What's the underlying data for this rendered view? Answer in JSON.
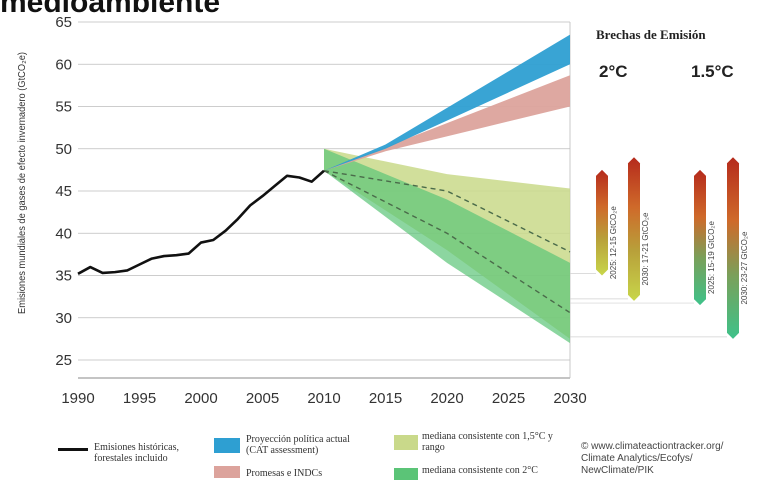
{
  "header": {
    "title_fragment": "medioambiente"
  },
  "gaps": {
    "title": "Brechas de Emisión",
    "h2c": "2°C",
    "h15c": "1.5°C",
    "bars": [
      {
        "label": "2025: 12-15 GtCO₂e",
        "from": 35,
        "to": 47.5
      },
      {
        "label": "2030: 17-21 GtCO₂e",
        "from": 32,
        "to": 49
      },
      {
        "label": "2025: 15-19 GtCO₂e",
        "from": 31.5,
        "to": 47.5
      },
      {
        "label": "2030: 23-27 GtCO₂e",
        "from": 27.5,
        "to": 49
      }
    ]
  },
  "legend": {
    "historical": "Emisiones históricas, forestales incluido",
    "current_policy": "Proyección política actual (CAT assessment)",
    "pledges": "Promesas e INDCs",
    "median_15": "mediana consistente con 1,5°C y rango",
    "median_2": "mediana consistente con 2°C"
  },
  "credit": [
    "© www.climateactiontracker.org/",
    "Climate Analytics/Ecofys/",
    "NewClimate/PIK"
  ],
  "colors": {
    "historical": "#111111",
    "current_policy": "#2e9fd2",
    "pledges": "#dca39c",
    "band_15": "#c9d98a",
    "band_2": "#5bc477",
    "band_overlap": "#8fcf7a",
    "median": "#4a6b4a",
    "bar_top": "#b52a1c",
    "bar_mid": "#d17a2a",
    "bar_yellow": "#c8d64a",
    "bar_green": "#3ec28a"
  },
  "chart_data": {
    "type": "line",
    "ylabel": "Emisiones mundiales de gases de efecto invernadero (GtCO₂e)",
    "xlabel": "",
    "xlim": [
      1990,
      2030
    ],
    "ylim": [
      25,
      65
    ],
    "x_ticks": [
      1990,
      1995,
      2000,
      2005,
      2010,
      2015,
      2020,
      2025,
      2030
    ],
    "y_ticks": [
      25,
      30,
      35,
      40,
      45,
      50,
      55,
      60,
      65
    ],
    "grid": "horizontal",
    "historical": {
      "name": "Emisiones históricas, forestales incluido",
      "x": [
        1990,
        1991,
        1992,
        1993,
        1994,
        1995,
        1996,
        1997,
        1998,
        1999,
        2000,
        2001,
        2002,
        2003,
        2004,
        2005,
        2006,
        2007,
        2008,
        2009,
        2010
      ],
      "y": [
        35.2,
        36.0,
        35.3,
        35.4,
        35.6,
        36.3,
        37.0,
        37.3,
        37.4,
        37.6,
        38.9,
        39.2,
        40.3,
        41.7,
        43.3,
        44.4,
        45.6,
        46.8,
        46.6,
        46.1,
        47.4
      ]
    },
    "current_policy": {
      "name": "Proyección política actual (CAT assessment)",
      "x": [
        2010,
        2015,
        2030
      ],
      "upper": [
        47.4,
        50.5,
        63.5
      ],
      "lower": [
        47.4,
        50.0,
        60.0
      ]
    },
    "pledges": {
      "name": "Promesas e INDCs",
      "x": [
        2010,
        2015,
        2030
      ],
      "upper": [
        47.4,
        50.2,
        58.7
      ],
      "lower": [
        47.4,
        49.7,
        55.0
      ]
    },
    "band_15": {
      "name": "mediana consistente con 1,5°C y rango",
      "x": [
        2010,
        2020,
        2030
      ],
      "upper": [
        50.0,
        47.0,
        45.3
      ],
      "lower": [
        47.4,
        38.0,
        27.5
      ],
      "median": {
        "x": [
          2010,
          2020,
          2030
        ],
        "y": [
          47.4,
          45.0,
          37.8
        ]
      }
    },
    "band_2": {
      "name": "mediana consistente con 2°C",
      "x": [
        2010,
        2020,
        2030
      ],
      "upper": [
        50.0,
        44.0,
        36.5
      ],
      "lower": [
        47.4,
        36.5,
        27.0
      ],
      "median": {
        "x": [
          2010,
          2020,
          2030
        ],
        "y": [
          47.4,
          40.0,
          30.6
        ]
      }
    }
  }
}
